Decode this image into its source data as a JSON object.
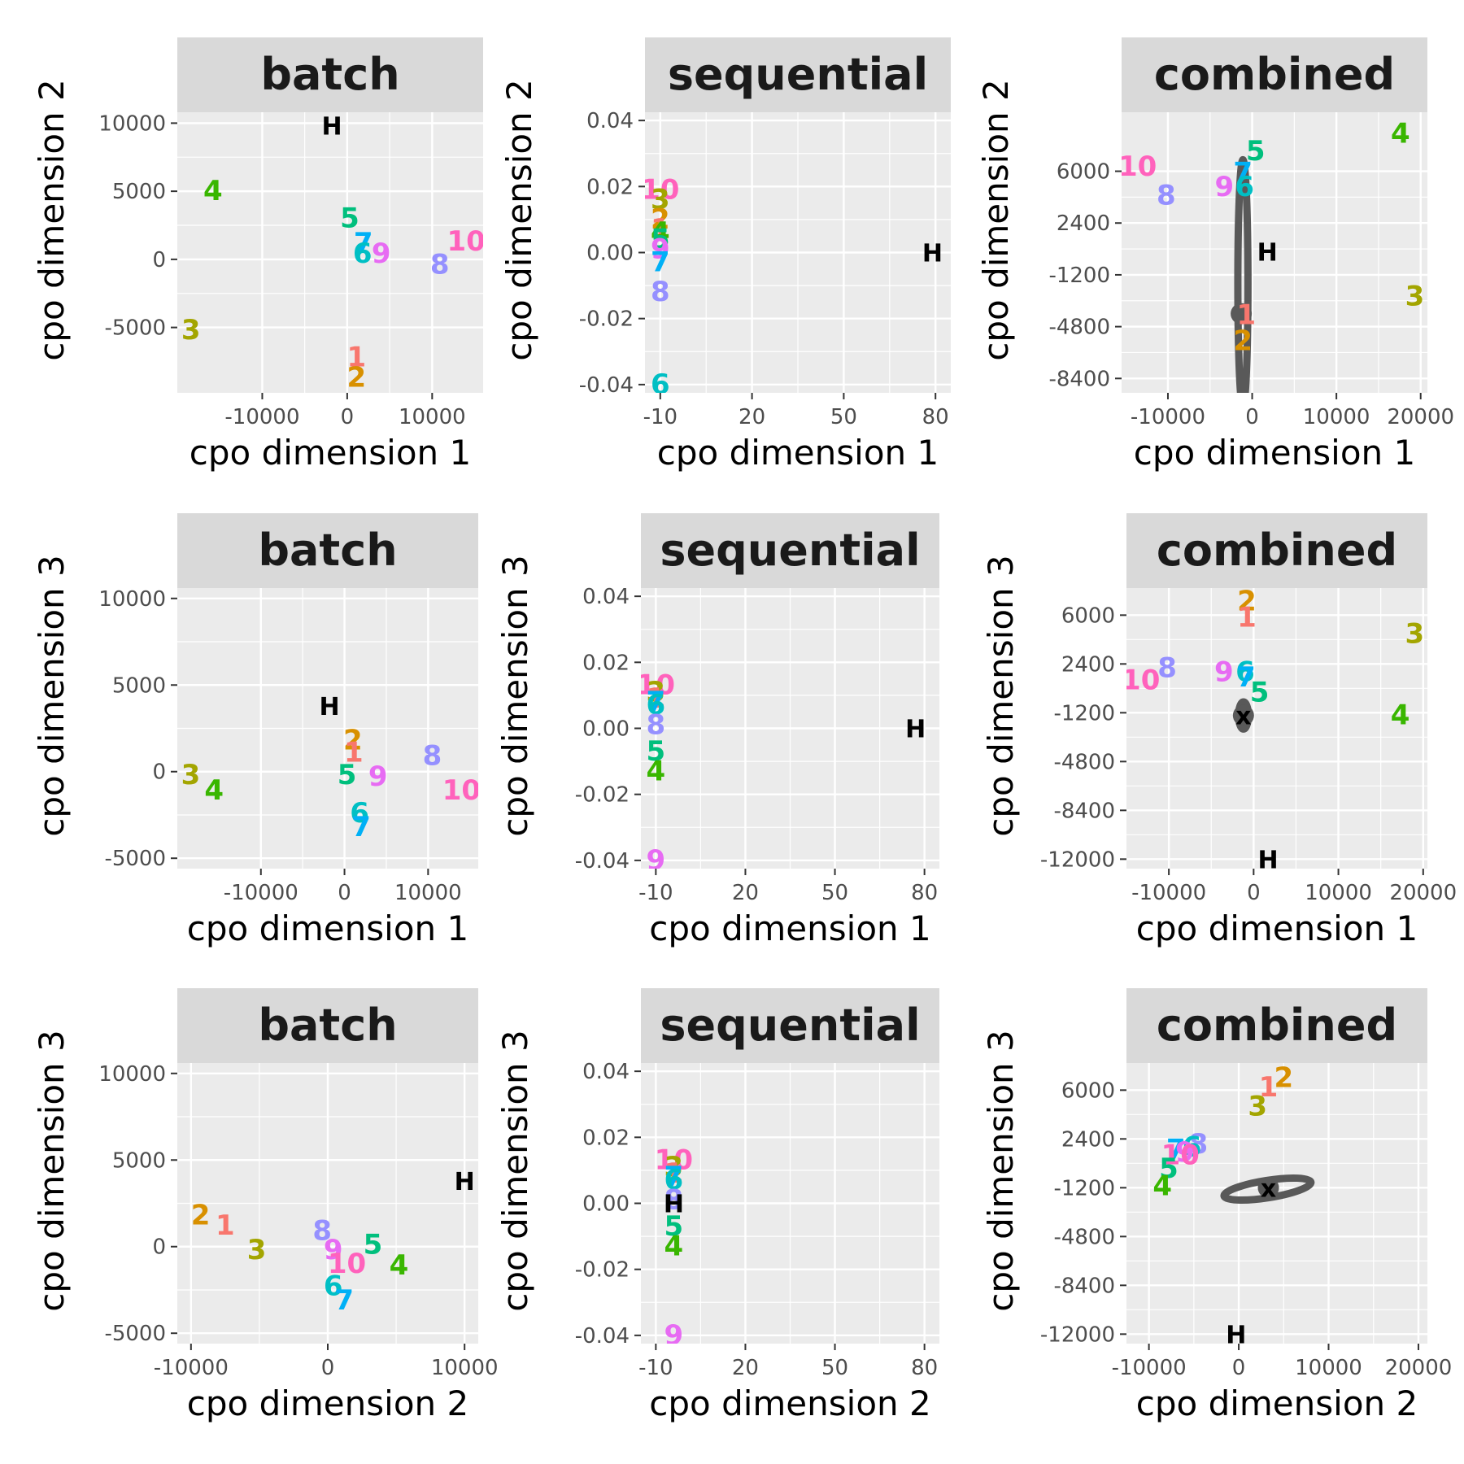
{
  "colors": {
    "1": "#F8766D",
    "2": "#D89000",
    "3": "#A3A500",
    "4": "#39B600",
    "5": "#00BF7D",
    "6": "#00BFC4",
    "7": "#00B0F6",
    "8": "#9590FF",
    "9": "#E76BF3",
    "10": "#FF62BC",
    "H": "#000000",
    "x": "#000000",
    "panel_bg": "#EBEBEB",
    "grid": "#FFFFFF",
    "strip_bg": "#D9D9D9",
    "ellipse": "#595959"
  },
  "chart_data": [
    {
      "type": "scatter",
      "title": "batch",
      "xlabel": "cpo dimension 1",
      "ylabel": "cpo dimension 2",
      "xlim": [
        -20000,
        16000
      ],
      "ylim": [
        -9800,
        10800
      ],
      "xticks": [
        -10000,
        0,
        10000
      ],
      "xtick_labels": [
        "-10000",
        "0",
        "10000"
      ],
      "yticks": [
        -5000,
        0,
        5000,
        10000
      ],
      "ytick_labels": [
        "-5000",
        "0",
        "5000",
        "10000"
      ],
      "xtick_pos": [
        -10000,
        0,
        10000
      ],
      "ytick_pos": [
        -5000,
        0,
        5000,
        10000
      ],
      "points": [
        {
          "label": "H",
          "x": -1800,
          "y": 9800
        },
        {
          "label": "4",
          "x": -15800,
          "y": 5000
        },
        {
          "label": "5",
          "x": 300,
          "y": 3000
        },
        {
          "label": "7",
          "x": 1900,
          "y": 1200
        },
        {
          "label": "6",
          "x": 1800,
          "y": 400
        },
        {
          "label": "9",
          "x": 4000,
          "y": 400
        },
        {
          "label": "10",
          "x": 14000,
          "y": 1300
        },
        {
          "label": "8",
          "x": 10900,
          "y": -400
        },
        {
          "label": "3",
          "x": -18400,
          "y": -5200
        },
        {
          "label": "1",
          "x": 1100,
          "y": -7200
        },
        {
          "label": "2",
          "x": 1100,
          "y": -8700
        }
      ],
      "centers": [],
      "ellipses": []
    },
    {
      "type": "scatter",
      "title": "sequential",
      "xlabel": "cpo dimension 1",
      "ylabel": "cpo dimension 2",
      "xlim": [
        -15,
        85
      ],
      "ylim": [
        -0.0425,
        0.0425
      ],
      "xticks": [
        -10,
        20,
        50,
        80
      ],
      "xtick_labels": [
        "-10",
        "20",
        "50",
        "80"
      ],
      "yticks": [
        -0.04,
        -0.02,
        0.0,
        0.02,
        0.04
      ],
      "ytick_labels": [
        "-0.04",
        "-0.02",
        "0.00",
        "0.02",
        "0.04"
      ],
      "xtick_pos": [
        -10,
        20,
        50,
        80
      ],
      "ytick_pos": [
        -0.04,
        -0.02,
        0,
        0.02,
        0.04
      ],
      "points": [
        {
          "label": "10",
          "x": -10,
          "y": 0.019
        },
        {
          "label": "3",
          "x": -10,
          "y": 0.016
        },
        {
          "label": "2",
          "x": -10,
          "y": 0.01
        },
        {
          "label": "1",
          "x": -10,
          "y": 0.007
        },
        {
          "label": "4",
          "x": -10,
          "y": 0.006
        },
        {
          "label": "5",
          "x": -10,
          "y": 0.004
        },
        {
          "label": "9",
          "x": -10,
          "y": 0.001
        },
        {
          "label": "7",
          "x": -10,
          "y": -0.003
        },
        {
          "label": "8",
          "x": -10,
          "y": -0.012
        },
        {
          "label": "6",
          "x": -10,
          "y": -0.04
        },
        {
          "label": "H",
          "x": 79,
          "y": 0.0
        }
      ],
      "centers": [],
      "ellipses": []
    },
    {
      "type": "scatter",
      "title": "combined",
      "xlabel": "cpo dimension 1",
      "ylabel": "cpo dimension 2",
      "xlim": [
        -15500,
        20800
      ],
      "ylim": [
        -9400,
        10100
      ],
      "xticks": [
        -10000,
        0,
        10000,
        20000
      ],
      "xtick_labels": [
        "-10000",
        "0",
        "10000",
        "20000"
      ],
      "yticks": [
        -8400,
        -4800,
        -1200,
        2400,
        6000
      ],
      "ytick_labels": [
        "-8400",
        "-4800",
        "-1200",
        "2400",
        "6000"
      ],
      "xtick_pos": [
        -10000,
        0,
        10000,
        20000
      ],
      "ytick_pos": [
        -8400,
        -4800,
        -1200,
        2400,
        6000
      ],
      "points": [
        {
          "label": "4",
          "x": 17600,
          "y": 8600
        },
        {
          "label": "5",
          "x": 400,
          "y": 7400
        },
        {
          "label": "10",
          "x": -13600,
          "y": 6300
        },
        {
          "label": "7",
          "x": -1100,
          "y": 5900
        },
        {
          "label": "9",
          "x": -3300,
          "y": 4900
        },
        {
          "label": "6",
          "x": -900,
          "y": 4900
        },
        {
          "label": "8",
          "x": -10200,
          "y": 4300
        },
        {
          "label": "H",
          "x": 1800,
          "y": 400
        },
        {
          "label": "3",
          "x": 19300,
          "y": -2700
        },
        {
          "label": "1",
          "x": -700,
          "y": -4000
        },
        {
          "label": "2",
          "x": -1100,
          "y": -5800
        }
      ],
      "centers": [
        {
          "x": -1300,
          "y": -3900
        }
      ],
      "ellipses": [
        {
          "cx": -1100,
          "cy": -1800,
          "rx": 600,
          "ry": 8600,
          "rot": 0
        }
      ]
    },
    {
      "type": "scatter",
      "title": "batch",
      "xlabel": "cpo dimension 1",
      "ylabel": "cpo dimension 3",
      "xlim": [
        -20000,
        16000
      ],
      "ylim": [
        -5600,
        10600
      ],
      "xticks": [
        -10000,
        0,
        10000
      ],
      "xtick_labels": [
        "-10000",
        "0",
        "10000"
      ],
      "yticks": [
        -5000,
        0,
        5000,
        10000
      ],
      "ytick_labels": [
        "-5000",
        "0",
        "5000",
        "10000"
      ],
      "xtick_pos": [
        -10000,
        0,
        10000
      ],
      "ytick_pos": [
        -5000,
        0,
        5000,
        10000
      ],
      "points": [
        {
          "label": "H",
          "x": -1800,
          "y": 3800
        },
        {
          "label": "2",
          "x": 1000,
          "y": 1800
        },
        {
          "label": "1",
          "x": 1100,
          "y": 1100
        },
        {
          "label": "8",
          "x": 10500,
          "y": 900
        },
        {
          "label": "3",
          "x": -18400,
          "y": -200
        },
        {
          "label": "5",
          "x": 300,
          "y": -200
        },
        {
          "label": "9",
          "x": 4000,
          "y": -300
        },
        {
          "label": "4",
          "x": -15600,
          "y": -1100
        },
        {
          "label": "10",
          "x": 14000,
          "y": -1100
        },
        {
          "label": "6",
          "x": 1800,
          "y": -2400
        },
        {
          "label": "7",
          "x": 2000,
          "y": -3200
        }
      ],
      "centers": [],
      "ellipses": []
    },
    {
      "type": "scatter",
      "title": "sequential",
      "xlabel": "cpo dimension 1",
      "ylabel": "cpo dimension 3",
      "xlim": [
        -15,
        85
      ],
      "ylim": [
        -0.0425,
        0.0425
      ],
      "xticks": [
        -10,
        20,
        50,
        80
      ],
      "xtick_labels": [
        "-10",
        "20",
        "50",
        "80"
      ],
      "yticks": [
        -0.04,
        -0.02,
        0.0,
        0.02,
        0.04
      ],
      "ytick_labels": [
        "-0.04",
        "-0.02",
        "0.00",
        "0.02",
        "0.04"
      ],
      "xtick_pos": [
        -10,
        20,
        50,
        80
      ],
      "ytick_pos": [
        -0.04,
        -0.02,
        0,
        0.02,
        0.04
      ],
      "points": [
        {
          "label": "10",
          "x": -10,
          "y": 0.013
        },
        {
          "label": "3",
          "x": -10,
          "y": 0.011
        },
        {
          "label": "1",
          "x": -10,
          "y": 0.009
        },
        {
          "label": "7",
          "x": -10,
          "y": 0.008
        },
        {
          "label": "6",
          "x": -10,
          "y": 0.007
        },
        {
          "label": "8",
          "x": -10,
          "y": 0.001
        },
        {
          "label": "5",
          "x": -10,
          "y": -0.007
        },
        {
          "label": "4",
          "x": -10,
          "y": -0.013
        },
        {
          "label": "9",
          "x": -10,
          "y": -0.04
        },
        {
          "label": "H",
          "x": 77,
          "y": 0.0
        }
      ],
      "centers": [],
      "ellipses": []
    },
    {
      "type": "scatter",
      "title": "combined",
      "xlabel": "cpo dimension 1",
      "ylabel": "cpo dimension 3",
      "xlim": [
        -15000,
        20500
      ],
      "ylim": [
        -12700,
        8000
      ],
      "xticks": [
        -10000,
        0,
        10000,
        20000
      ],
      "xtick_labels": [
        "-10000",
        "0",
        "10000",
        "20000"
      ],
      "yticks": [
        -12000,
        -8400,
        -4800,
        -1200,
        2400,
        6000
      ],
      "ytick_labels": [
        "-12000",
        "-8400",
        "-4800",
        "-1200",
        "2400",
        "6000"
      ],
      "xtick_pos": [
        -10000,
        0,
        10000,
        20000
      ],
      "ytick_pos": [
        -12000,
        -8400,
        -4800,
        -1200,
        2400,
        6000
      ],
      "points": [
        {
          "label": "2",
          "x": -800,
          "y": 7000
        },
        {
          "label": "1",
          "x": -800,
          "y": 5800
        },
        {
          "label": "3",
          "x": 19000,
          "y": 4600
        },
        {
          "label": "8",
          "x": -10200,
          "y": 2100
        },
        {
          "label": "9",
          "x": -3500,
          "y": 1800
        },
        {
          "label": "6",
          "x": -1000,
          "y": 1800
        },
        {
          "label": "7",
          "x": -900,
          "y": 1400
        },
        {
          "label": "10",
          "x": -13300,
          "y": 1200
        },
        {
          "label": "5",
          "x": 700,
          "y": 300
        },
        {
          "label": "x",
          "x": -1200,
          "y": -1400
        },
        {
          "label": "4",
          "x": 17300,
          "y": -1400
        },
        {
          "label": "H",
          "x": 1700,
          "y": -12000
        }
      ],
      "centers": [
        {
          "x": -1200,
          "y": -1400
        }
      ],
      "ellipses": [
        {
          "cx": -1200,
          "cy": -1400,
          "rx": 500,
          "ry": 1000,
          "rot": 0
        }
      ]
    },
    {
      "type": "scatter",
      "title": "batch",
      "xlabel": "cpo dimension 2",
      "ylabel": "cpo dimension 3",
      "xlim": [
        -11000,
        11000
      ],
      "ylim": [
        -5600,
        10600
      ],
      "xticks": [
        -10000,
        0,
        10000
      ],
      "xtick_labels": [
        "-10000",
        "0",
        "10000"
      ],
      "yticks": [
        -5000,
        0,
        5000,
        10000
      ],
      "ytick_labels": [
        "-5000",
        "0",
        "5000",
        "10000"
      ],
      "xtick_pos": [
        -10000,
        0,
        10000
      ],
      "ytick_pos": [
        -5000,
        0,
        5000,
        10000
      ],
      "points": [
        {
          "label": "H",
          "x": 10000,
          "y": 3800
        },
        {
          "label": "2",
          "x": -9300,
          "y": 1800
        },
        {
          "label": "1",
          "x": -7500,
          "y": 1200
        },
        {
          "label": "8",
          "x": -400,
          "y": 900
        },
        {
          "label": "5",
          "x": 3300,
          "y": 100
        },
        {
          "label": "3",
          "x": -5200,
          "y": -200
        },
        {
          "label": "9",
          "x": 400,
          "y": -200
        },
        {
          "label": "10",
          "x": 1400,
          "y": -1000
        },
        {
          "label": "4",
          "x": 5200,
          "y": -1100
        },
        {
          "label": "6",
          "x": 400,
          "y": -2300
        },
        {
          "label": "7",
          "x": 1200,
          "y": -3100
        }
      ],
      "centers": [],
      "ellipses": []
    },
    {
      "type": "scatter",
      "title": "sequential",
      "xlabel": "cpo dimension 2",
      "ylabel": "cpo dimension 3",
      "xlim": [
        -15,
        85
      ],
      "ylim": [
        -0.0425,
        0.0425
      ],
      "xticks": [
        -10,
        20,
        50,
        80
      ],
      "xtick_labels": [
        "-10",
        "20",
        "50",
        "80"
      ],
      "yticks": [
        -0.04,
        -0.02,
        0.0,
        0.02,
        0.04
      ],
      "ytick_labels": [
        "-0.04",
        "-0.02",
        "0.00",
        "0.02",
        "0.04"
      ],
      "xtick_pos": [
        -10,
        20,
        50,
        80
      ],
      "ytick_pos": [
        -0.04,
        -0.02,
        0,
        0.02,
        0.04
      ],
      "points": [
        {
          "label": "10",
          "x": -4,
          "y": 0.013
        },
        {
          "label": "3",
          "x": -4,
          "y": 0.011
        },
        {
          "label": "1",
          "x": -4,
          "y": 0.009
        },
        {
          "label": "7",
          "x": -4,
          "y": 0.008
        },
        {
          "label": "6",
          "x": -4,
          "y": 0.007
        },
        {
          "label": "8",
          "x": -4,
          "y": 0.001
        },
        {
          "label": "H",
          "x": -4,
          "y": 0.0
        },
        {
          "label": "5",
          "x": -4,
          "y": -0.007
        },
        {
          "label": "4",
          "x": -4,
          "y": -0.013
        },
        {
          "label": "9",
          "x": -4,
          "y": -0.04
        }
      ],
      "centers": [],
      "ellipses": []
    },
    {
      "type": "scatter",
      "title": "combined",
      "xlabel": "cpo dimension 2",
      "ylabel": "cpo dimension 3",
      "xlim": [
        -12500,
        21000
      ],
      "ylim": [
        -12700,
        8000
      ],
      "xticks": [
        -10000,
        0,
        10000,
        20000
      ],
      "xtick_labels": [
        "-10000",
        "0",
        "10000",
        "20000"
      ],
      "yticks": [
        -12000,
        -8400,
        -4800,
        -1200,
        2400,
        6000
      ],
      "ytick_labels": [
        "-12000",
        "-8400",
        "-4800",
        "-1200",
        "2400",
        "6000"
      ],
      "xtick_pos": [
        -10000,
        0,
        10000,
        20000
      ],
      "ytick_pos": [
        -12000,
        -8400,
        -4800,
        -1200,
        2400,
        6000
      ],
      "points": [
        {
          "label": "2",
          "x": 5000,
          "y": 6900
        },
        {
          "label": "1",
          "x": 3300,
          "y": 6200
        },
        {
          "label": "3",
          "x": 2100,
          "y": 4800
        },
        {
          "label": "8",
          "x": -4500,
          "y": 2000
        },
        {
          "label": "6",
          "x": -5200,
          "y": 1800
        },
        {
          "label": "7",
          "x": -7000,
          "y": 1600
        },
        {
          "label": "9",
          "x": -6000,
          "y": 1400
        },
        {
          "label": "10",
          "x": -6500,
          "y": 1200
        },
        {
          "label": "5",
          "x": -7800,
          "y": 200
        },
        {
          "label": "4",
          "x": -8500,
          "y": -1100
        },
        {
          "label": "x",
          "x": 3300,
          "y": -1200
        },
        {
          "label": "H",
          "x": -300,
          "y": -12000
        }
      ],
      "centers": [
        {
          "x": 3300,
          "y": -1200
        }
      ],
      "ellipses": [
        {
          "cx": 3200,
          "cy": -1300,
          "rx": 4900,
          "ry": 640,
          "rot": -9
        }
      ]
    }
  ]
}
